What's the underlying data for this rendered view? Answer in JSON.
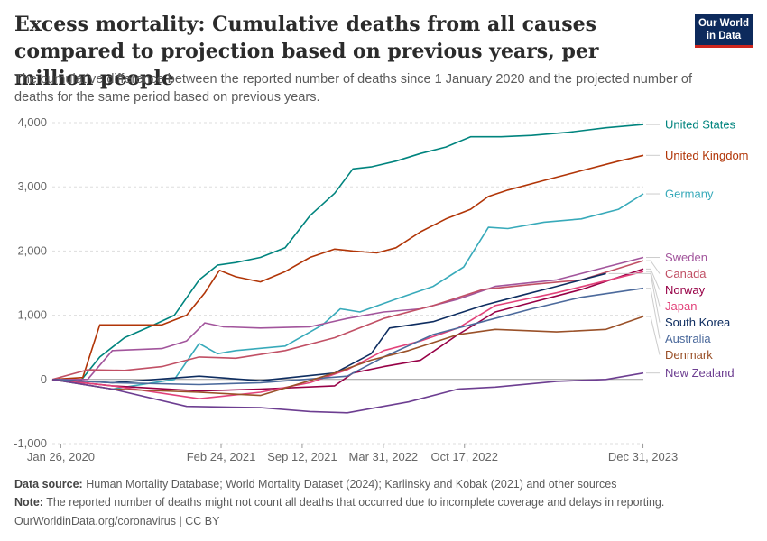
{
  "header": {
    "title": "Excess mortality: Cumulative deaths from all causes compared to projection based on previous years, per million people",
    "subtitle": "The cumulative difference between the reported number of deaths since 1 January 2020 and the projected number of deaths for the same period based on previous years.",
    "logo_line1": "Our World",
    "logo_line2": "in Data"
  },
  "colors": {
    "brand": "#0d2a5c",
    "brand_accent": "#ce261e"
  },
  "chart_data": {
    "type": "line",
    "title": "Excess mortality: Cumulative deaths from all causes compared to projection based on previous years, per million people",
    "xlabel": "",
    "ylabel": "",
    "ylim": [
      -1000,
      4000
    ],
    "xlim": [
      "2020-01-05",
      "2024-01-01"
    ],
    "y_ticks": [
      -1000,
      0,
      1000,
      2000,
      3000,
      4000
    ],
    "y_tick_labels": [
      "-1,000",
      "0",
      "1,000",
      "2,000",
      "3,000",
      "4,000"
    ],
    "x_tick_labels": [
      "Jan 26, 2020",
      "Feb 24, 2021",
      "Sep 12, 2021",
      "Mar 31, 2022",
      "Oct 17, 2022",
      "Dec 31, 2023"
    ],
    "x_tick_dates": [
      "2020-01-26",
      "2021-02-24",
      "2021-09-12",
      "2022-03-31",
      "2022-10-17",
      "2023-12-31"
    ],
    "grid": "horizontal dashed",
    "legend": "right (line end labels)",
    "series": [
      {
        "name": "United States",
        "color": "#00847e",
        "x": [
          "2020-01-05",
          "2020-03-15",
          "2020-05-01",
          "2020-07-01",
          "2020-09-01",
          "2020-11-01",
          "2021-01-01",
          "2021-02-15",
          "2021-04-01",
          "2021-06-01",
          "2021-08-01",
          "2021-10-01",
          "2021-12-01",
          "2022-01-15",
          "2022-03-01",
          "2022-05-01",
          "2022-07-01",
          "2022-09-01",
          "2022-11-01",
          "2023-01-15",
          "2023-04-01",
          "2023-07-01",
          "2023-10-01",
          "2024-01-01"
        ],
        "values": [
          0,
          -20,
          350,
          650,
          820,
          1000,
          1550,
          1780,
          1820,
          1900,
          2050,
          2550,
          2900,
          3280,
          3310,
          3400,
          3520,
          3620,
          3780,
          3780,
          3800,
          3850,
          3920,
          3970
        ]
      },
      {
        "name": "United Kingdom",
        "color": "#b13507",
        "x": [
          "2020-01-05",
          "2020-03-20",
          "2020-05-01",
          "2020-07-01",
          "2020-10-01",
          "2020-12-01",
          "2021-01-15",
          "2021-02-20",
          "2021-04-01",
          "2021-06-01",
          "2021-08-01",
          "2021-10-01",
          "2021-12-01",
          "2022-01-15",
          "2022-03-15",
          "2022-05-01",
          "2022-07-01",
          "2022-09-01",
          "2022-11-01",
          "2022-12-15",
          "2023-02-01",
          "2023-05-01",
          "2023-08-01",
          "2023-11-01",
          "2024-01-01"
        ],
        "values": [
          0,
          30,
          850,
          850,
          850,
          1000,
          1350,
          1700,
          1600,
          1520,
          1680,
          1900,
          2030,
          2000,
          1970,
          2050,
          2300,
          2500,
          2650,
          2850,
          2950,
          3100,
          3250,
          3400,
          3490
        ]
      },
      {
        "name": "Germany",
        "color": "#38aaba",
        "x": [
          "2020-01-05",
          "2020-06-01",
          "2020-11-01",
          "2021-01-01",
          "2021-02-15",
          "2021-04-01",
          "2021-08-01",
          "2021-11-01",
          "2021-12-15",
          "2022-02-01",
          "2022-05-01",
          "2022-08-01",
          "2022-10-15",
          "2022-12-15",
          "2023-02-01",
          "2023-05-01",
          "2023-08-01",
          "2023-11-01",
          "2024-01-01"
        ],
        "values": [
          0,
          -150,
          0,
          560,
          400,
          450,
          520,
          850,
          1100,
          1050,
          1250,
          1450,
          1750,
          2370,
          2350,
          2450,
          2500,
          2650,
          2890
        ]
      },
      {
        "name": "Sweden",
        "color": "#a2559c",
        "x": [
          "2020-01-05",
          "2020-04-01",
          "2020-06-01",
          "2020-10-01",
          "2020-12-01",
          "2021-01-15",
          "2021-03-01",
          "2021-06-01",
          "2021-10-01",
          "2022-01-01",
          "2022-04-01",
          "2022-07-01",
          "2022-10-01",
          "2023-01-01",
          "2023-06-01",
          "2024-01-01"
        ],
        "values": [
          0,
          0,
          450,
          480,
          600,
          880,
          820,
          800,
          820,
          950,
          1050,
          1100,
          1250,
          1450,
          1550,
          1900
        ]
      },
      {
        "name": "Canada",
        "color": "#c15065",
        "x": [
          "2020-01-05",
          "2020-04-01",
          "2020-07-01",
          "2020-10-01",
          "2021-01-01",
          "2021-04-01",
          "2021-08-01",
          "2021-12-01",
          "2022-04-01",
          "2022-08-01",
          "2022-12-01",
          "2023-04-01",
          "2023-08-01",
          "2024-01-01"
        ],
        "values": [
          0,
          150,
          140,
          200,
          350,
          330,
          450,
          650,
          950,
          1150,
          1400,
          1480,
          1550,
          1850
        ]
      },
      {
        "name": "Norway",
        "color": "#970046",
        "x": [
          "2020-01-05",
          "2020-06-01",
          "2021-01-01",
          "2021-06-01",
          "2021-12-01",
          "2022-01-15",
          "2022-04-01",
          "2022-07-01",
          "2022-10-01",
          "2023-01-01",
          "2023-04-01",
          "2023-08-01",
          "2024-01-01"
        ],
        "values": [
          0,
          -100,
          -180,
          -150,
          -100,
          100,
          200,
          300,
          700,
          1050,
          1200,
          1400,
          1720
        ]
      },
      {
        "name": "Japan",
        "color": "#e2427a",
        "x": [
          "2020-01-05",
          "2020-06-01",
          "2021-01-01",
          "2021-06-01",
          "2021-10-01",
          "2022-01-01",
          "2022-04-01",
          "2022-07-01",
          "2022-10-01",
          "2023-01-01",
          "2023-06-01",
          "2024-01-01"
        ],
        "values": [
          0,
          -100,
          -300,
          -200,
          -50,
          150,
          450,
          600,
          800,
          1150,
          1350,
          1680
        ]
      },
      {
        "name": "South Korea",
        "color": "#0e2d60",
        "x": [
          "2020-01-05",
          "2020-06-01",
          "2021-01-01",
          "2021-06-01",
          "2021-12-01",
          "2022-03-01",
          "2022-04-15",
          "2022-08-01",
          "2022-12-01",
          "2023-03-01",
          "2023-06-01",
          "2023-10-01"
        ],
        "values": [
          0,
          -50,
          50,
          -20,
          100,
          400,
          800,
          900,
          1150,
          1300,
          1450,
          1650
        ]
      },
      {
        "name": "Australia",
        "color": "#4c6a9c",
        "x": [
          "2020-01-05",
          "2020-06-01",
          "2021-01-01",
          "2021-06-01",
          "2022-01-01",
          "2022-04-01",
          "2022-08-01",
          "2022-12-01",
          "2023-04-01",
          "2023-08-01",
          "2024-01-01"
        ],
        "values": [
          0,
          -50,
          -80,
          -50,
          50,
          350,
          700,
          900,
          1100,
          1280,
          1420
        ]
      },
      {
        "name": "Denmark",
        "color": "#9a5129",
        "x": [
          "2020-01-05",
          "2020-06-01",
          "2021-01-01",
          "2021-06-01",
          "2021-12-01",
          "2022-03-01",
          "2022-06-01",
          "2022-10-01",
          "2023-01-01",
          "2023-06-01",
          "2023-10-01",
          "2024-01-01"
        ],
        "values": [
          0,
          -150,
          -200,
          -250,
          100,
          300,
          450,
          700,
          780,
          740,
          780,
          980
        ]
      },
      {
        "name": "New Zealand",
        "color": "#6d3e91",
        "x": [
          "2020-01-05",
          "2020-06-01",
          "2020-12-01",
          "2021-06-01",
          "2021-10-01",
          "2022-01-01",
          "2022-06-01",
          "2022-10-01",
          "2023-01-01",
          "2023-06-01",
          "2023-10-01",
          "2024-01-01"
        ],
        "values": [
          0,
          -150,
          -420,
          -440,
          -500,
          -520,
          -350,
          -150,
          -120,
          -30,
          0,
          100
        ]
      }
    ]
  },
  "footer": {
    "source_label": "Data source:",
    "source_text": "Human Mortality Database; World Mortality Dataset (2024); Karlinsky and Kobak (2021) and other sources",
    "note_label": "Note:",
    "note_text": "The reported number of deaths might not count all deaths that occurred due to incomplete coverage and delays in reporting.",
    "credit": "OurWorldinData.org/coronavirus | CC BY"
  }
}
